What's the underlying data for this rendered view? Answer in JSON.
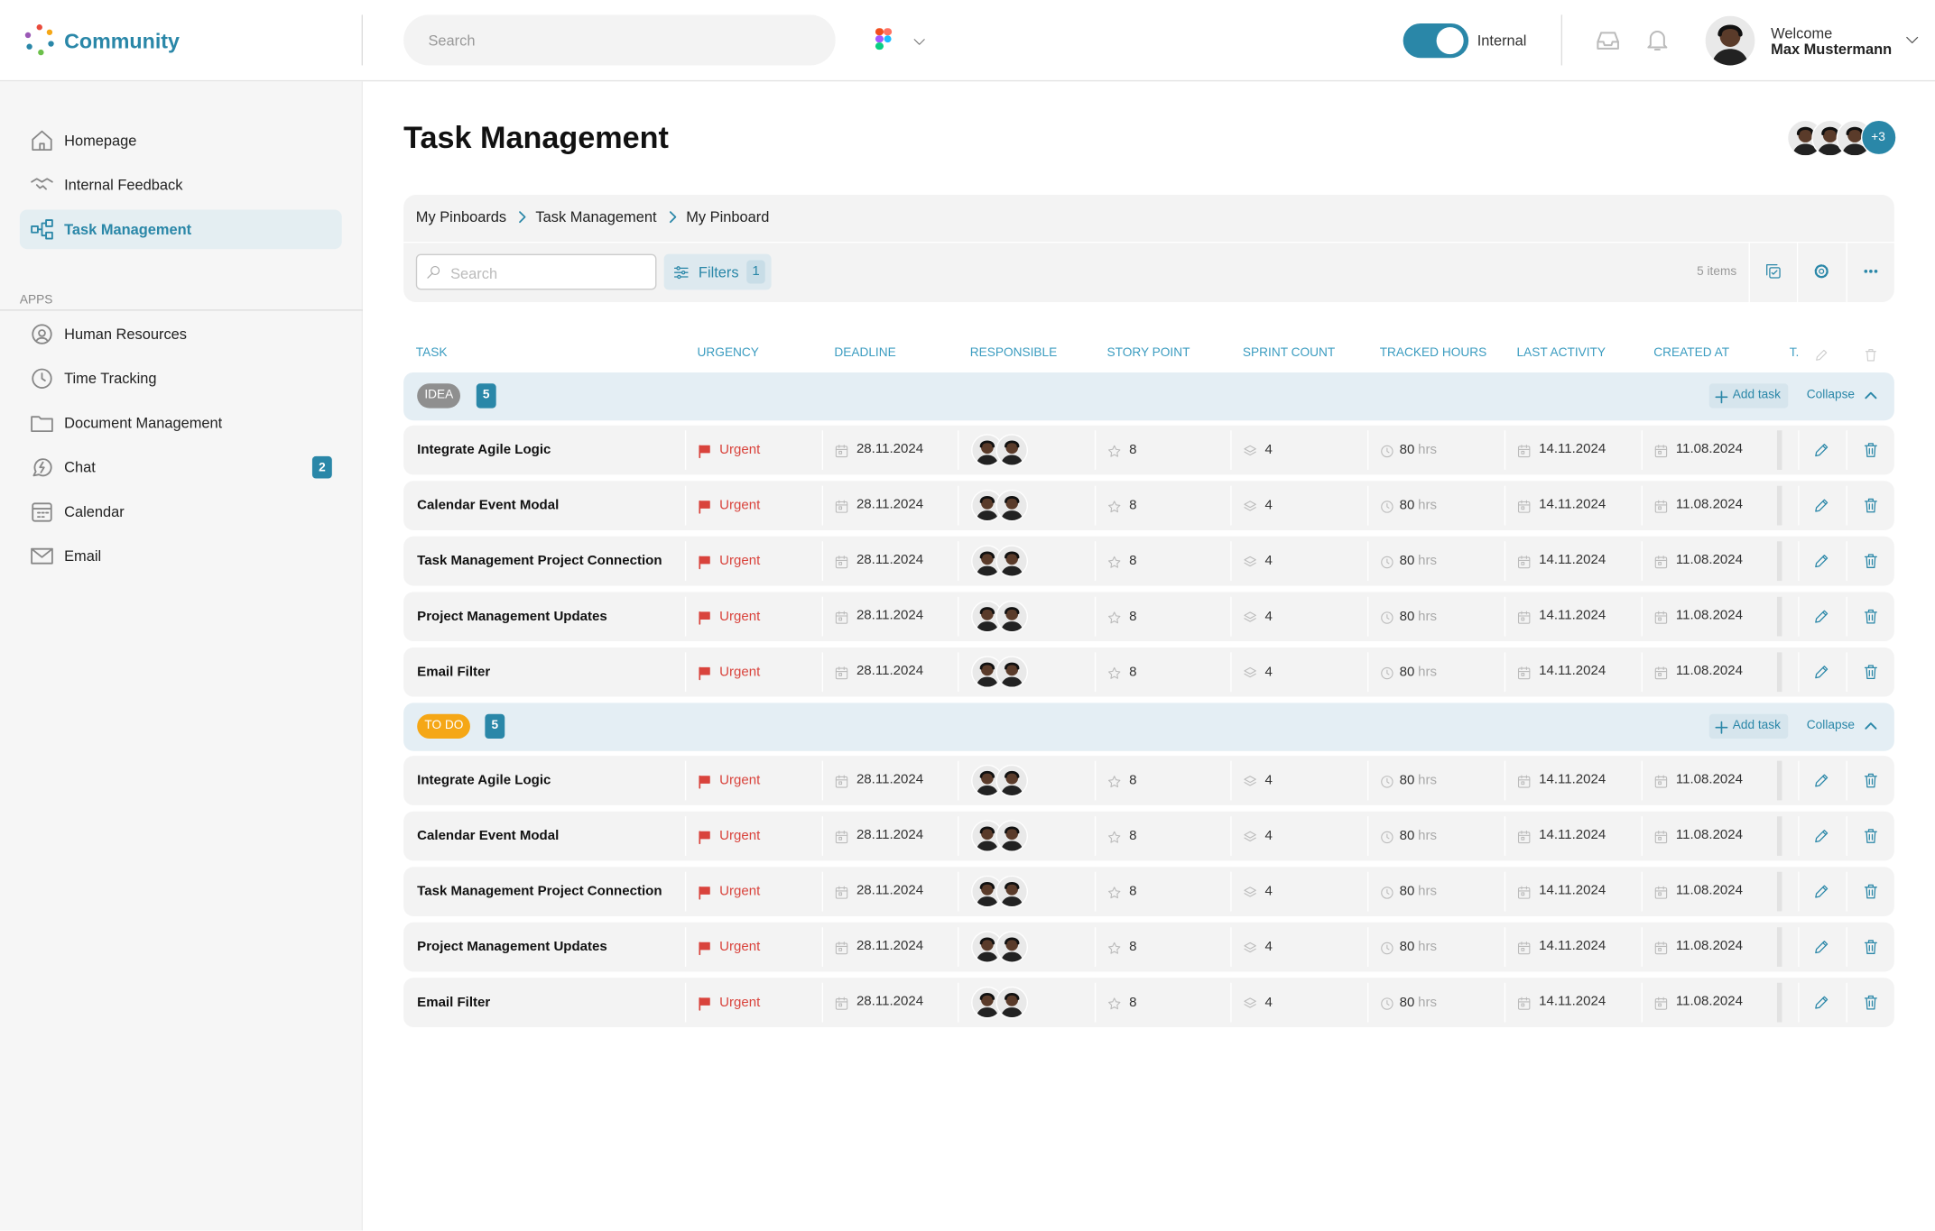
{
  "header": {
    "brand": "Community",
    "search_placeholder": "Search",
    "toggle_label": "Internal",
    "welcome": "Welcome",
    "user_name": "Max Mustermann"
  },
  "sidebar": {
    "nav": [
      {
        "label": "Homepage"
      },
      {
        "label": "Internal Feedback"
      },
      {
        "label": "Task Management",
        "active": true
      }
    ],
    "apps_heading": "APPS",
    "apps": [
      {
        "label": "Human Resources"
      },
      {
        "label": "Time Tracking"
      },
      {
        "label": "Document Management"
      },
      {
        "label": "Chat",
        "badge": 2
      },
      {
        "label": "Calendar"
      },
      {
        "label": "Email"
      }
    ]
  },
  "page": {
    "title": "Task Management",
    "avatars_more": "+3",
    "breadcrumb": [
      "My Pinboards",
      "Task Management",
      "My Pinboard"
    ],
    "search_placeholder": "Search",
    "filters_label": "Filters",
    "filters_count": 1,
    "items_count": "5 items"
  },
  "table": {
    "columns": [
      "TASK",
      "URGENCY",
      "DEADLINE",
      "RESPONSIBLE",
      "STORY POINT",
      "SPRINT COUNT",
      "TRACKED HOURS",
      "LAST ACTIVITY",
      "CREATED AT",
      "T."
    ],
    "groups": [
      {
        "status": "IDEA",
        "status_color": "#8f8f8f",
        "count": 5,
        "add_label": "Add task",
        "collapse_label": "Collapse",
        "rows": [
          {
            "task": "Integrate Agile Logic",
            "urgency": "Urgent",
            "deadline": "28.11.2024",
            "story_point": 8,
            "sprint_count": 4,
            "tracked_hours": 80,
            "tracked_unit": "hrs",
            "last_activity": "14.11.2024",
            "created_at": "11.08.2024"
          },
          {
            "task": "Calendar Event Modal",
            "urgency": "Urgent",
            "deadline": "28.11.2024",
            "story_point": 8,
            "sprint_count": 4,
            "tracked_hours": 80,
            "tracked_unit": "hrs",
            "last_activity": "14.11.2024",
            "created_at": "11.08.2024"
          },
          {
            "task": "Task Management Project Connection",
            "urgency": "Urgent",
            "deadline": "28.11.2024",
            "story_point": 8,
            "sprint_count": 4,
            "tracked_hours": 80,
            "tracked_unit": "hrs",
            "last_activity": "14.11.2024",
            "created_at": "11.08.2024"
          },
          {
            "task": "Project Management Updates",
            "urgency": "Urgent",
            "deadline": "28.11.2024",
            "story_point": 8,
            "sprint_count": 4,
            "tracked_hours": 80,
            "tracked_unit": "hrs",
            "last_activity": "14.11.2024",
            "created_at": "11.08.2024"
          },
          {
            "task": "Email Filter",
            "urgency": "Urgent",
            "deadline": "28.11.2024",
            "story_point": 8,
            "sprint_count": 4,
            "tracked_hours": 80,
            "tracked_unit": "hrs",
            "last_activity": "14.11.2024",
            "created_at": "11.08.2024"
          }
        ]
      },
      {
        "status": "TO DO",
        "status_color": "#f5a716",
        "count": 5,
        "add_label": "Add task",
        "collapse_label": "Collapse",
        "rows": [
          {
            "task": "Integrate Agile Logic",
            "urgency": "Urgent",
            "deadline": "28.11.2024",
            "story_point": 8,
            "sprint_count": 4,
            "tracked_hours": 80,
            "tracked_unit": "hrs",
            "last_activity": "14.11.2024",
            "created_at": "11.08.2024"
          },
          {
            "task": "Calendar Event Modal",
            "urgency": "Urgent",
            "deadline": "28.11.2024",
            "story_point": 8,
            "sprint_count": 4,
            "tracked_hours": 80,
            "tracked_unit": "hrs",
            "last_activity": "14.11.2024",
            "created_at": "11.08.2024"
          },
          {
            "task": "Task Management Project Connection",
            "urgency": "Urgent",
            "deadline": "28.11.2024",
            "story_point": 8,
            "sprint_count": 4,
            "tracked_hours": 80,
            "tracked_unit": "hrs",
            "last_activity": "14.11.2024",
            "created_at": "11.08.2024"
          },
          {
            "task": "Project Management Updates",
            "urgency": "Urgent",
            "deadline": "28.11.2024",
            "story_point": 8,
            "sprint_count": 4,
            "tracked_hours": 80,
            "tracked_unit": "hrs",
            "last_activity": "14.11.2024",
            "created_at": "11.08.2024"
          },
          {
            "task": "Email Filter",
            "urgency": "Urgent",
            "deadline": "28.11.2024",
            "story_point": 8,
            "sprint_count": 4,
            "tracked_hours": 80,
            "tracked_unit": "hrs",
            "last_activity": "14.11.2024",
            "created_at": "11.08.2024"
          }
        ]
      }
    ]
  }
}
